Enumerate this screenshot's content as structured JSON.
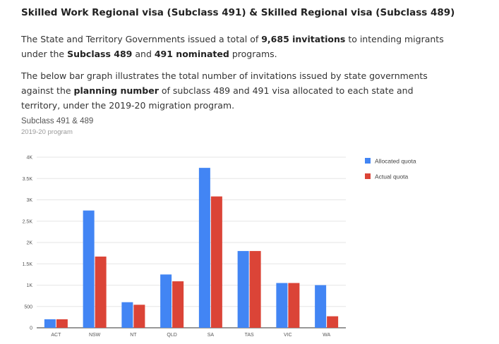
{
  "heading": "Skilled Work Regional visa (Subclass 491) & Skilled Regional visa (Subclass 489)",
  "paragraph1": {
    "t1": "The State and Territory Governments issued a total of ",
    "b1": "9,685 invitations",
    "t2": " to intending migrants under the ",
    "b2": "Subclass 489",
    "t3": " and ",
    "b3": "491 nominated",
    "t4": " programs."
  },
  "paragraph2": {
    "t1": "The below bar graph illustrates the total number of invitations issued by state governments against the ",
    "b1": "planning number",
    "t2": " of subclass 489 and 491 visa allocated to each state and territory, under the 2019-20 migration program."
  },
  "chart_data": {
    "type": "bar",
    "title": "Subclass 491 & 489",
    "subtitle": "2019-20 program",
    "xlabel": "",
    "ylabel": "",
    "categories": [
      "ACT",
      "NSW",
      "NT",
      "QLD",
      "SA",
      "TAS",
      "VIC",
      "WA"
    ],
    "series": [
      {
        "name": "Allocated quota",
        "color": "#4285f4",
        "values": [
          200,
          2750,
          600,
          1250,
          3750,
          1800,
          1050,
          1000
        ]
      },
      {
        "name": "Actual quota",
        "color": "#db4437",
        "values": [
          200,
          1670,
          540,
          1090,
          3080,
          1800,
          1050,
          270
        ]
      }
    ],
    "ylim": [
      0,
      4000
    ],
    "yticks": [
      0,
      500,
      1000,
      1500,
      2000,
      2500,
      3000,
      3500,
      4000
    ],
    "ytick_labels": [
      "0",
      "500",
      "1K",
      "1.5K",
      "2K",
      "2.5K",
      "3K",
      "3.5K",
      "4K"
    ],
    "grid": true,
    "legend_position": "right"
  }
}
